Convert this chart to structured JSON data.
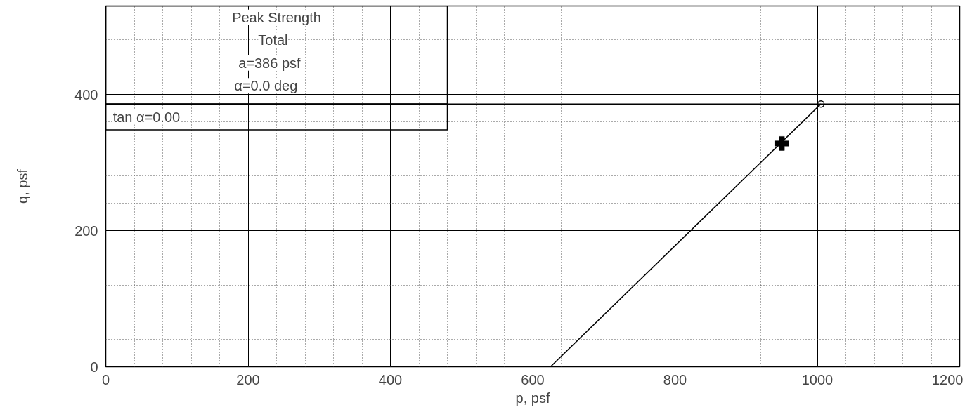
{
  "chart_data": {
    "type": "line",
    "xlabel": "p, psf",
    "ylabel": "q, psf",
    "xlim": [
      0,
      1200
    ],
    "ylim": [
      0,
      530
    ],
    "xticks": [
      0,
      200,
      400,
      600,
      800,
      1000,
      1200
    ],
    "yticks": [
      0,
      200,
      400
    ],
    "grid": true,
    "series": [
      {
        "type": "line",
        "color": "#000000",
        "x": [
          625,
          1005
        ],
        "values": [
          0,
          386
        ]
      },
      {
        "type": "scatter",
        "marker": "cross",
        "color": "#000000",
        "x": [
          950
        ],
        "values": [
          328
        ]
      },
      {
        "type": "scatter",
        "marker": "circle",
        "color": "#000000",
        "x": [
          1005
        ],
        "values": [
          386
        ]
      }
    ],
    "ref_lines": [
      {
        "axis": "y",
        "value": 386,
        "color": "#000000"
      }
    ],
    "annotations": [
      "Peak Strength",
      "Total",
      "a=386 psf",
      "α=0.0 deg",
      "tan α=0.00"
    ]
  }
}
